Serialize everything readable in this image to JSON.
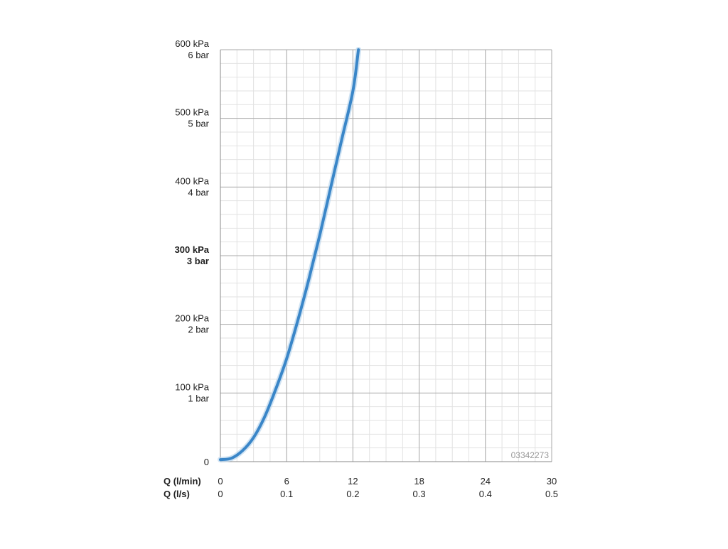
{
  "chart_data": {
    "type": "line",
    "x_axis_primary": {
      "label": "Q (l/min)",
      "ticks": [
        "0",
        "6",
        "12",
        "18",
        "24",
        "30"
      ],
      "range": [
        0,
        30
      ]
    },
    "x_axis_secondary": {
      "label": "Q (l/s)",
      "ticks": [
        "0",
        "0.1",
        "0.2",
        "0.3",
        "0.4",
        "0.5"
      ]
    },
    "y_axis": {
      "range": [
        0,
        600
      ],
      "ticks": [
        {
          "value": 0,
          "kpa": "0",
          "bar": "",
          "bold": false
        },
        {
          "value": 100,
          "kpa": "100 kPa",
          "bar": "1 bar",
          "bold": false
        },
        {
          "value": 200,
          "kpa": "200 kPa",
          "bar": "2 bar",
          "bold": false
        },
        {
          "value": 300,
          "kpa": "300 kPa",
          "bar": "3 bar",
          "bold": true
        },
        {
          "value": 400,
          "kpa": "400 kPa",
          "bar": "4 bar",
          "bold": false
        },
        {
          "value": 500,
          "kpa": "500 kPa",
          "bar": "5 bar",
          "bold": false
        },
        {
          "value": 600,
          "kpa": "600 kPa",
          "bar": "6 bar",
          "bold": false
        }
      ]
    },
    "series": [
      {
        "color": "#3a86c8",
        "x": [
          0,
          1,
          2,
          3,
          4,
          5,
          6,
          7,
          8,
          9,
          10,
          11,
          12,
          12.5
        ],
        "y": [
          3,
          5,
          16,
          35,
          65,
          105,
          150,
          205,
          265,
          330,
          400,
          470,
          540,
          600
        ]
      }
    ],
    "grid": true,
    "watermark": "03342273"
  }
}
